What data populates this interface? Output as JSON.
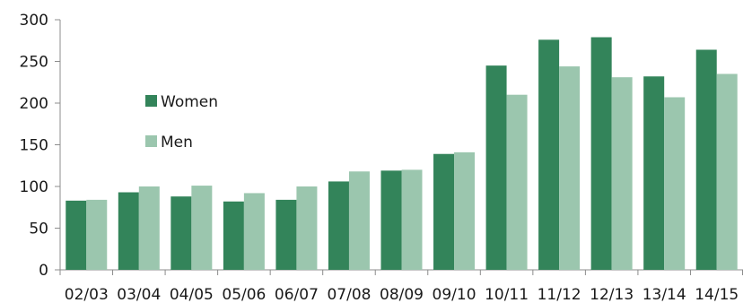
{
  "chart_data": {
    "type": "bar",
    "categories": [
      "02/03",
      "03/04",
      "04/05",
      "05/06",
      "06/07",
      "07/08",
      "08/09",
      "09/10",
      "10/11",
      "11/12",
      "12/13",
      "13/14",
      "14/15"
    ],
    "series": [
      {
        "name": "Women",
        "color": "#33845a",
        "values": [
          83,
          93,
          88,
          82,
          84,
          106,
          119,
          139,
          245,
          276,
          279,
          232,
          264
        ]
      },
      {
        "name": "Men",
        "color": "#9bc6ae",
        "values": [
          84,
          100,
          101,
          92,
          100,
          118,
          120,
          141,
          210,
          244,
          231,
          207,
          235
        ]
      }
    ],
    "ylim": [
      0,
      300
    ],
    "yticks": [
      0,
      50,
      100,
      150,
      200,
      250,
      300
    ],
    "title": "",
    "xlabel": "",
    "ylabel": "",
    "grid": false,
    "legend_position": "left"
  }
}
